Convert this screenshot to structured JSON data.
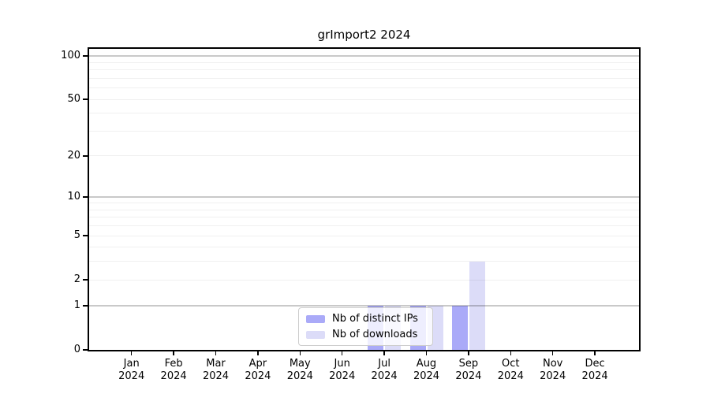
{
  "title": "grImport2 2024",
  "chart_data": {
    "type": "bar",
    "title": "grImport2 2024",
    "categories": [
      "Jan",
      "Feb",
      "Mar",
      "Apr",
      "May",
      "Jun",
      "Jul",
      "Aug",
      "Sep",
      "Oct",
      "Nov",
      "Dec"
    ],
    "category_year": "2024",
    "series": [
      {
        "name": "Nb of distinct IPs",
        "color": "#aaaaf8",
        "values": [
          0,
          0,
          0,
          0,
          0,
          0,
          1,
          1,
          1,
          0,
          0,
          0
        ]
      },
      {
        "name": "Nb of downloads",
        "color": "#dcdcf8",
        "values": [
          0,
          0,
          0,
          0,
          0,
          0,
          1,
          1,
          3,
          0,
          0,
          0
        ]
      }
    ],
    "xlabel": "",
    "ylabel": "",
    "yscale": "log1p",
    "ylim": [
      0,
      100
    ],
    "yticks": [
      100,
      50,
      20,
      10,
      5,
      2,
      1,
      0
    ],
    "grid": "on",
    "grid_major_values": [
      1,
      10,
      100
    ],
    "grid_minor_values": [
      2,
      3,
      4,
      5,
      6,
      7,
      8,
      9,
      20,
      30,
      40,
      50,
      60,
      70,
      80,
      90
    ],
    "legend_position": "lower center"
  },
  "legend": {
    "items": [
      {
        "label": "Nb of distinct IPs",
        "color": "#aaaaf8"
      },
      {
        "label": "Nb of downloads",
        "color": "#dcdcf8"
      }
    ]
  },
  "colors": {
    "frame": "#000000",
    "grid_major": "#c9c9c9",
    "grid_minor": "#f0f0f0",
    "legend_border": "#cccccc",
    "background": "#ffffff"
  }
}
